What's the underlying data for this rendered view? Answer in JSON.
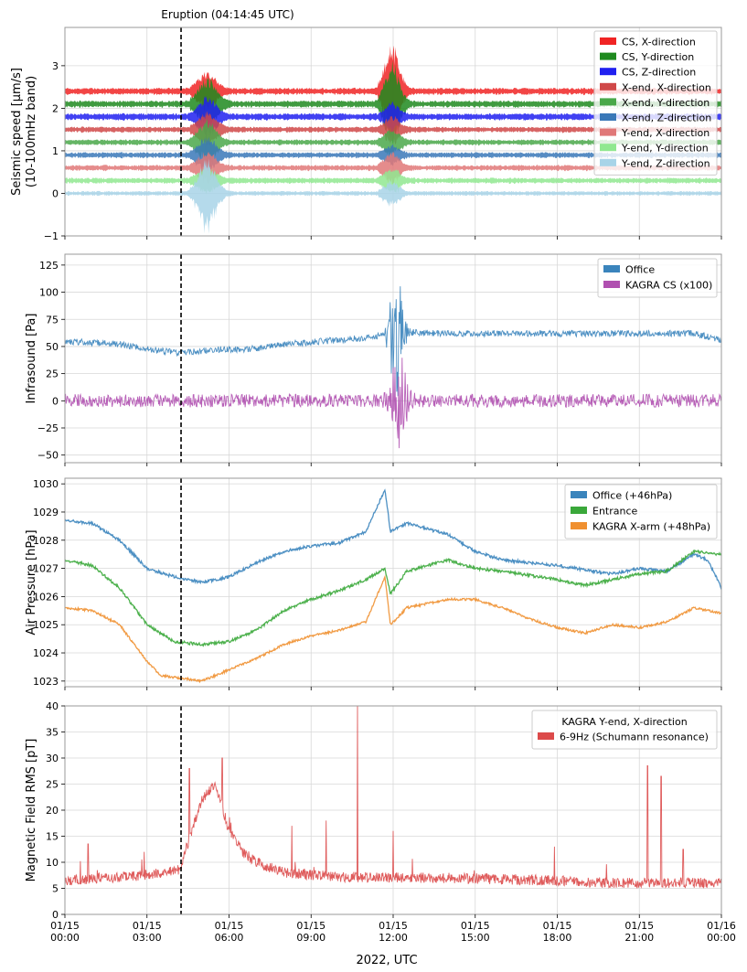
{
  "chart_data": {
    "type": "line",
    "shared_x": {
      "label": "2022, UTC",
      "range_hours": [
        0,
        24
      ],
      "ticks": [
        {
          "hour": 0,
          "date": "01/15",
          "time": "00:00"
        },
        {
          "hour": 3,
          "date": "01/15",
          "time": "03:00"
        },
        {
          "hour": 6,
          "date": "01/15",
          "time": "06:00"
        },
        {
          "hour": 9,
          "date": "01/15",
          "time": "09:00"
        },
        {
          "hour": 12,
          "date": "01/15",
          "time": "12:00"
        },
        {
          "hour": 15,
          "date": "01/15",
          "time": "15:00"
        },
        {
          "hour": 18,
          "date": "01/15",
          "time": "18:00"
        },
        {
          "hour": 21,
          "date": "01/15",
          "time": "21:00"
        },
        {
          "hour": 24,
          "date": "01/16",
          "time": "00:00"
        }
      ]
    },
    "event_marker": {
      "label": "Eruption (04:14:45 UTC)",
      "hour": 4.246
    },
    "panels": [
      {
        "id": "seismic",
        "ylabel_lines": [
          "Seismic speed [μm/s]",
          "(10-100mHz band)"
        ],
        "ylim": [
          -1.0,
          3.9
        ],
        "yticks": [
          -1,
          0,
          1,
          2,
          3
        ],
        "legend_title": "",
        "series": [
          {
            "name": "CS, X-direction",
            "color": "#f02424",
            "baseline": 2.4,
            "noise": 0.06,
            "bursts": [
              {
                "c": 5.2,
                "w": 0.7,
                "a": 0.4
              },
              {
                "c": 11.95,
                "w": 0.55,
                "a": 1.2
              }
            ]
          },
          {
            "name": "CS, Y-direction",
            "color": "#1f8a1f",
            "baseline": 2.1,
            "noise": 0.06,
            "bursts": [
              {
                "c": 5.2,
                "w": 0.7,
                "a": 0.6
              },
              {
                "c": 11.95,
                "w": 0.55,
                "a": 1.0
              }
            ]
          },
          {
            "name": "CS, Z-direction",
            "color": "#2020f0",
            "baseline": 1.8,
            "noise": 0.06,
            "bursts": [
              {
                "c": 5.2,
                "w": 0.7,
                "a": 0.45
              },
              {
                "c": 11.95,
                "w": 0.55,
                "a": 0.3
              }
            ]
          },
          {
            "name": "X-end, X-direction",
            "color": "#d04848",
            "baseline": 1.5,
            "noise": 0.05,
            "bursts": [
              {
                "c": 5.2,
                "w": 0.7,
                "a": 0.4
              },
              {
                "c": 11.95,
                "w": 0.55,
                "a": 0.3
              }
            ]
          },
          {
            "name": "X-end, Y-direction",
            "color": "#4aa84a",
            "baseline": 1.2,
            "noise": 0.05,
            "bursts": [
              {
                "c": 5.2,
                "w": 0.7,
                "a": 0.5
              },
              {
                "c": 11.95,
                "w": 0.55,
                "a": 0.3
              }
            ]
          },
          {
            "name": "X-end, Z-direction",
            "color": "#3a78b8",
            "baseline": 0.9,
            "noise": 0.05,
            "bursts": [
              {
                "c": 5.2,
                "w": 0.7,
                "a": 0.4
              },
              {
                "c": 11.95,
                "w": 0.55,
                "a": 0.2
              }
            ]
          },
          {
            "name": "Y-end, X-direction",
            "color": "#e07878",
            "baseline": 0.6,
            "noise": 0.05,
            "bursts": [
              {
                "c": 5.2,
                "w": 0.7,
                "a": 0.35
              },
              {
                "c": 11.95,
                "w": 0.55,
                "a": 0.35
              }
            ]
          },
          {
            "name": "Y-end, Y-direction",
            "color": "#90e890",
            "baseline": 0.3,
            "noise": 0.05,
            "bursts": [
              {
                "c": 5.2,
                "w": 0.7,
                "a": 0.3
              },
              {
                "c": 11.95,
                "w": 0.55,
                "a": 0.3
              }
            ]
          },
          {
            "name": "Y-end, Z-direction",
            "color": "#a8d4e8",
            "baseline": 0.0,
            "noise": 0.04,
            "bursts": [
              {
                "c": 5.2,
                "w": 0.7,
                "a": 0.8
              },
              {
                "c": 11.95,
                "w": 0.55,
                "a": 0.3
              }
            ]
          }
        ]
      },
      {
        "id": "infrasound",
        "ylabel_lines": [
          "Infrasound [Pa]"
        ],
        "ylim": [
          -57,
          135
        ],
        "yticks": [
          -50,
          -25,
          0,
          25,
          50,
          75,
          100,
          125
        ],
        "legend_title": "",
        "series": [
          {
            "name": "Office",
            "color": "#3a84bc",
            "noise": 3,
            "curve": [
              [
                0,
                55
              ],
              [
                2,
                52
              ],
              [
                3.5,
                46
              ],
              [
                4.25,
                44
              ],
              [
                5.5,
                47
              ],
              [
                7,
                48
              ],
              [
                8,
                52
              ],
              [
                9,
                54
              ],
              [
                10,
                56
              ],
              [
                11,
                58
              ],
              [
                11.5,
                60
              ],
              [
                12.5,
                63
              ],
              [
                14,
                62
              ],
              [
                17,
                62
              ],
              [
                20,
                62
              ],
              [
                23,
                62
              ],
              [
                24,
                56
              ]
            ],
            "bursts": [
              {
                "c": 12.1,
                "w": 0.45,
                "a": 60
              }
            ]
          },
          {
            "name": "KAGRA CS (x100)",
            "color": "#b050b0",
            "noise": 6,
            "curve": [
              [
                0,
                0
              ],
              [
                24,
                0
              ]
            ],
            "bursts": [
              {
                "c": 12.2,
                "w": 0.6,
                "a": 45
              }
            ]
          }
        ]
      },
      {
        "id": "pressure",
        "ylabel_lines": [
          "Air Pressure [hPa]"
        ],
        "ylim": [
          1022.8,
          1030.2
        ],
        "yticks": [
          1023,
          1024,
          1025,
          1026,
          1027,
          1028,
          1029,
          1030
        ],
        "legend_title": "",
        "series": [
          {
            "name": "Office (+46hPa)",
            "color": "#3a84bc",
            "noise": 0.05,
            "curve": [
              [
                0,
                1028.7
              ],
              [
                1,
                1028.6
              ],
              [
                2,
                1028.0
              ],
              [
                3,
                1027.0
              ],
              [
                4,
                1026.7
              ],
              [
                5,
                1026.5
              ],
              [
                6,
                1026.7
              ],
              [
                7,
                1027.2
              ],
              [
                8,
                1027.6
              ],
              [
                9,
                1027.8
              ],
              [
                10,
                1027.9
              ],
              [
                11,
                1028.3
              ],
              [
                11.7,
                1029.8
              ],
              [
                11.9,
                1028.3
              ],
              [
                12.5,
                1028.6
              ],
              [
                14,
                1028.2
              ],
              [
                15,
                1027.6
              ],
              [
                16,
                1027.3
              ],
              [
                18,
                1027.1
              ],
              [
                20,
                1026.8
              ],
              [
                21,
                1027.0
              ],
              [
                22,
                1026.9
              ],
              [
                23,
                1027.5
              ],
              [
                23.5,
                1027.3
              ],
              [
                24,
                1026.3
              ]
            ]
          },
          {
            "name": "Entrance",
            "color": "#3aa83a",
            "noise": 0.05,
            "curve": [
              [
                0,
                1027.3
              ],
              [
                1,
                1027.1
              ],
              [
                2,
                1026.3
              ],
              [
                3,
                1025.0
              ],
              [
                4,
                1024.4
              ],
              [
                5,
                1024.3
              ],
              [
                6,
                1024.4
              ],
              [
                7,
                1024.8
              ],
              [
                8,
                1025.5
              ],
              [
                9,
                1025.9
              ],
              [
                10,
                1026.2
              ],
              [
                11,
                1026.6
              ],
              [
                11.7,
                1027.0
              ],
              [
                11.9,
                1026.1
              ],
              [
                12.5,
                1026.9
              ],
              [
                14,
                1027.3
              ],
              [
                15,
                1027.0
              ],
              [
                16,
                1026.9
              ],
              [
                18,
                1026.6
              ],
              [
                19,
                1026.4
              ],
              [
                20,
                1026.6
              ],
              [
                21,
                1026.8
              ],
              [
                22,
                1026.9
              ],
              [
                23,
                1027.6
              ],
              [
                24,
                1027.5
              ]
            ]
          },
          {
            "name": "KAGRA X-arm (+48hPa)",
            "color": "#f09030",
            "noise": 0.04,
            "curve": [
              [
                0,
                1025.6
              ],
              [
                1,
                1025.5
              ],
              [
                2,
                1025.0
              ],
              [
                3,
                1023.7
              ],
              [
                3.5,
                1023.2
              ],
              [
                4.25,
                1023.1
              ],
              [
                5,
                1023.0
              ],
              [
                6,
                1023.4
              ],
              [
                7,
                1023.8
              ],
              [
                8,
                1024.3
              ],
              [
                9,
                1024.6
              ],
              [
                10,
                1024.8
              ],
              [
                11,
                1025.1
              ],
              [
                11.7,
                1026.7
              ],
              [
                11.9,
                1025.0
              ],
              [
                12.5,
                1025.6
              ],
              [
                14,
                1025.9
              ],
              [
                15,
                1025.9
              ],
              [
                16,
                1025.6
              ],
              [
                17,
                1025.2
              ],
              [
                18,
                1024.9
              ],
              [
                19,
                1024.7
              ],
              [
                20,
                1025.0
              ],
              [
                21,
                1024.9
              ],
              [
                22,
                1025.1
              ],
              [
                23,
                1025.6
              ],
              [
                24,
                1025.4
              ]
            ]
          }
        ]
      },
      {
        "id": "magnetic",
        "ylabel_lines": [
          "Magnetic Field RMS [pT]"
        ],
        "ylim": [
          0,
          40
        ],
        "yticks": [
          0,
          5,
          10,
          15,
          20,
          25,
          30,
          35,
          40
        ],
        "legend_title": "KAGRA Y-end, X-direction",
        "series": [
          {
            "name": "6-9Hz (Schumann resonance)",
            "color": "#dc4a4a",
            "noise": 1.0,
            "curve": [
              [
                0,
                6.5
              ],
              [
                3,
                7.5
              ],
              [
                4.2,
                8.5
              ],
              [
                4.4,
                12
              ],
              [
                5,
                22
              ],
              [
                5.5,
                25
              ],
              [
                6,
                16
              ],
              [
                6.5,
                12
              ],
              [
                7,
                10
              ],
              [
                8,
                8
              ],
              [
                10,
                7.2
              ],
              [
                14,
                7.0
              ],
              [
                18,
                6.5
              ],
              [
                20,
                6.0
              ],
              [
                24,
                6.0
              ]
            ],
            "spikes": [
              {
                "hour": 0.85,
                "value": 13.5
              },
              {
                "hour": 2.9,
                "value": 12
              },
              {
                "hour": 4.55,
                "value": 28
              },
              {
                "hour": 5.75,
                "value": 30
              },
              {
                "hour": 8.3,
                "value": 17
              },
              {
                "hour": 9.55,
                "value": 18
              },
              {
                "hour": 10.7,
                "value": 40
              },
              {
                "hour": 12.0,
                "value": 16
              },
              {
                "hour": 17.9,
                "value": 13
              },
              {
                "hour": 21.3,
                "value": 28.5
              },
              {
                "hour": 21.8,
                "value": 26.5
              },
              {
                "hour": 22.6,
                "value": 12.5
              }
            ]
          }
        ]
      }
    ]
  }
}
